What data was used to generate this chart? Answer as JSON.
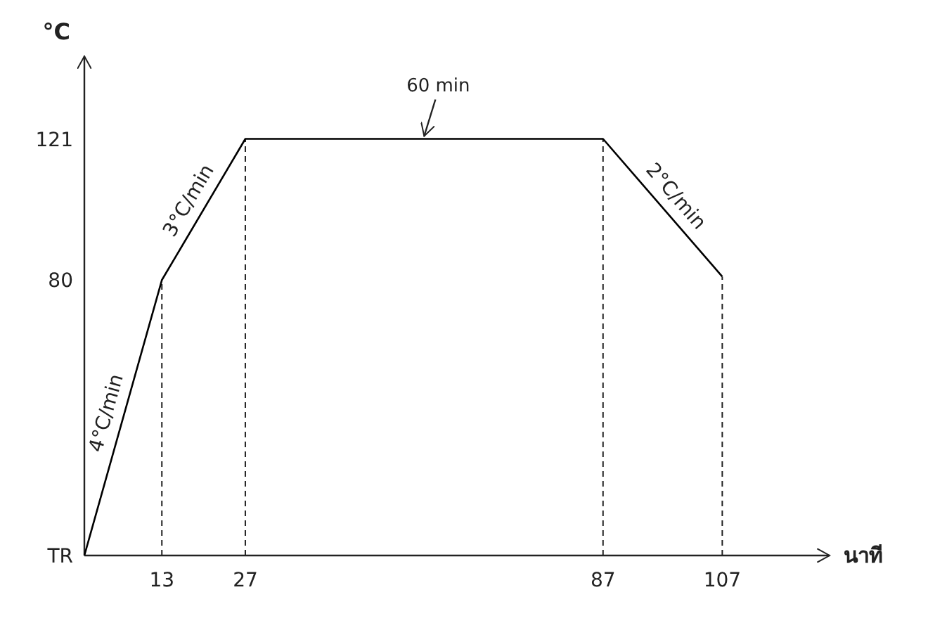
{
  "chart_data": {
    "type": "line",
    "ylabel": "°C",
    "xlabel": "นาที",
    "x": [
      0,
      13,
      27,
      87,
      107
    ],
    "series": [
      {
        "color": "#000000",
        "values": [
          0,
          80,
          121,
          121,
          81
        ]
      }
    ],
    "xlim": [
      0,
      125
    ],
    "ylim": [
      0,
      145
    ],
    "xticks": [
      13,
      27,
      87,
      107
    ],
    "yticks": [
      {
        "value": 0,
        "label": "TR"
      },
      80,
      121
    ],
    "grid": false,
    "line_style": "solid",
    "ref_lines": [
      {
        "axis": "x",
        "value": 13,
        "line_style": "dashed"
      },
      {
        "axis": "x",
        "value": 27,
        "line_style": "dashed"
      },
      {
        "axis": "x",
        "value": 87,
        "line_style": "dashed"
      },
      {
        "axis": "x",
        "value": 107,
        "line_style": "dashed"
      }
    ],
    "annotations": [
      {
        "text": "4°C/min",
        "x": 6.5,
        "y": 40
      },
      {
        "text": "3°C/min",
        "x": 20,
        "y": 100.5
      },
      {
        "text": "60 min",
        "x": 57,
        "y": 121
      },
      {
        "text": "2°C/min",
        "x": 97,
        "y": 101
      }
    ]
  }
}
